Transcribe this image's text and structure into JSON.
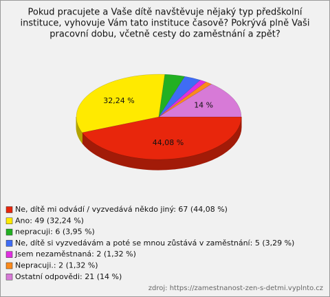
{
  "chart_data": {
    "type": "pie",
    "title": [
      "Pokud pracujete a Vaše dítě navštěvuje nějaký typ předškolní",
      "instituce, vyhovuje Vám tato instituce časově? Pokrývá plně Vaši",
      "pracovní dobu, včetně cesty do zaměstnání a zpět?"
    ],
    "categories": [
      "Ne, dítě mi odvádí / vyzvedává někdo jiný: 67 (44,08 %)",
      "Ano: 49 (32,24 %)",
      "nepracuji: 6 (3,95 %)",
      "Ne, dítě si vyzvedávám a poté se mnou zůstává v zaměstnání: 5 (3,29 %)",
      "Jsem nezaměstnaná: 2 (1,32 %)",
      "Nepracuji.: 2 (1,32 %)",
      "Ostatní odpovědi: 21 (14 %)"
    ],
    "values": [
      44.08,
      32.24,
      3.95,
      3.29,
      1.32,
      1.32,
      14
    ],
    "value_labels": [
      "44,08 %",
      "32,24 %",
      null,
      null,
      null,
      null,
      "14 %"
    ],
    "colors": [
      "#e8260c",
      "#ffea00",
      "#22b022",
      "#3f6cf5",
      "#e02fe0",
      "#fb8a1c",
      "#d77ad7"
    ],
    "source": "zdroj: https://zamestnanost-zen-s-detmi.vyplnto.cz"
  }
}
